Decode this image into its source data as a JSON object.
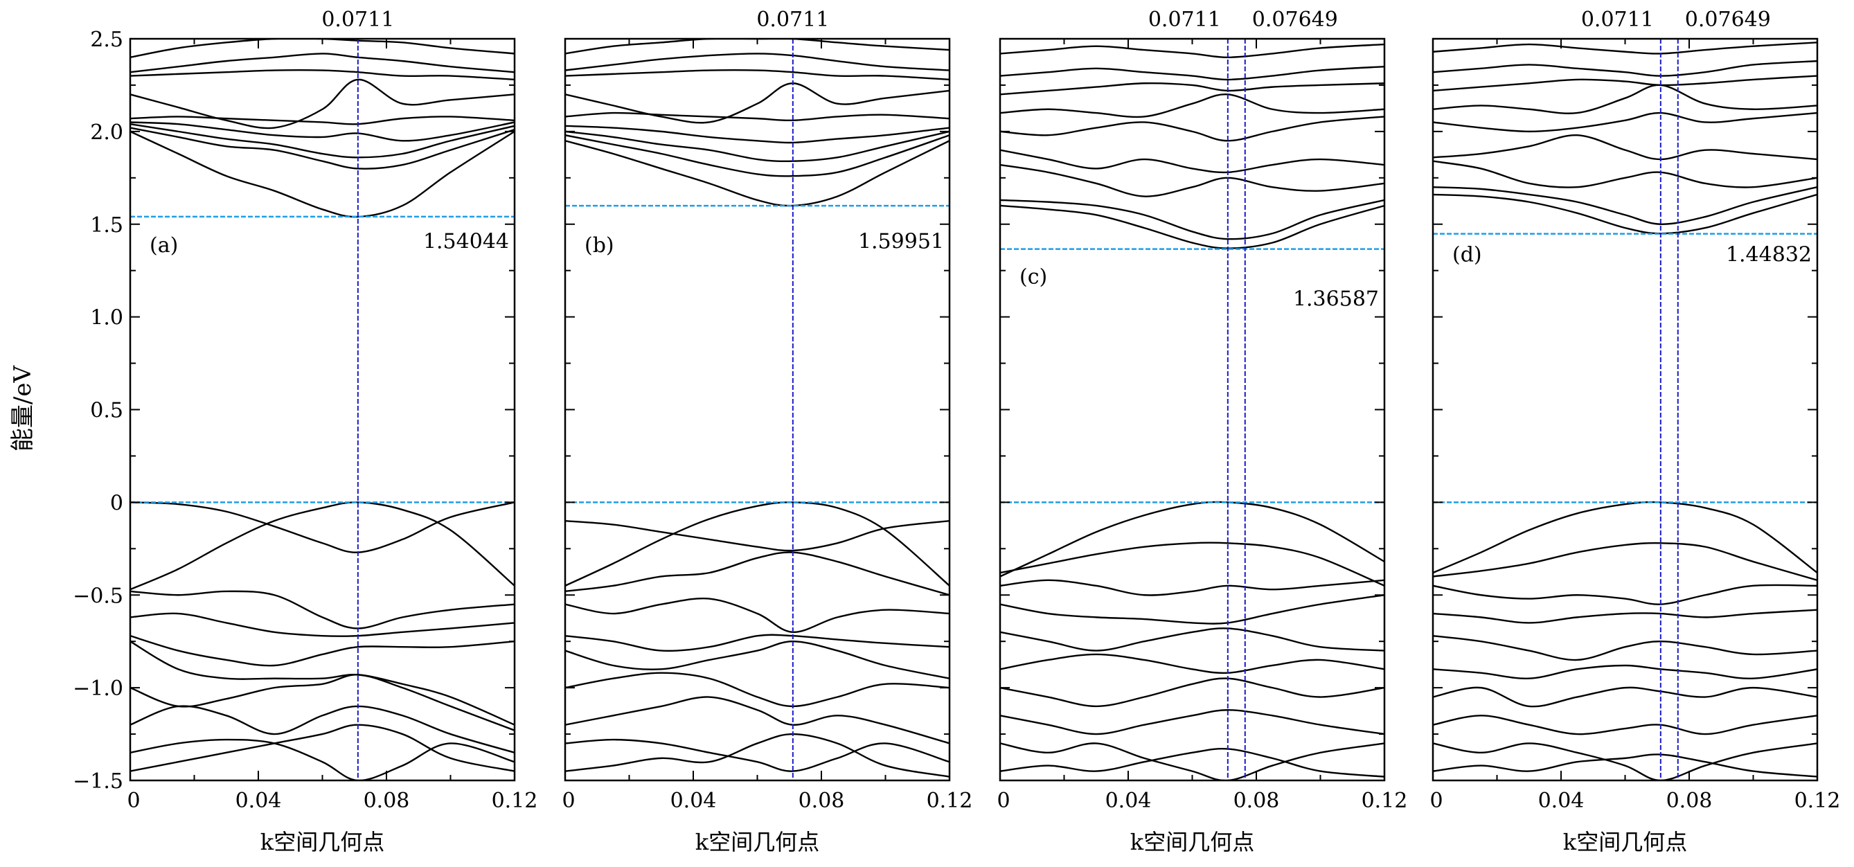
{
  "figure": {
    "ylabel": "能量/eV",
    "xlabel": "k空间几何点",
    "colors": {
      "bands": "#000000",
      "fermi_and_cbm_lines": "#1e9ee6",
      "k_markers": "#1a1acc"
    }
  },
  "chart_data": [
    {
      "type": "line",
      "panel_label": "(a)",
      "xlabel": "k空间几何点",
      "ylabel": "能量/eV",
      "xlim": [
        0,
        0.12
      ],
      "ylim": [
        -1.5,
        2.5
      ],
      "xticks": [
        "0",
        "0.04",
        "0.08",
        "0.12"
      ],
      "yticks": [
        "−1.5",
        "−1.0",
        "−0.5",
        "0",
        "0.5",
        "1.0",
        "1.5",
        "2.0",
        "2.5"
      ],
      "k_markers": [
        0.0711
      ],
      "k_marker_labels": [
        "0.0711"
      ],
      "cbm": 1.54044,
      "cbm_label": "1.54044",
      "vbm": 0,
      "k": [
        0,
        0.015,
        0.03,
        0.045,
        0.06,
        0.0711,
        0.085,
        0.1,
        0.12
      ],
      "bands": [
        [
          2.0,
          1.88,
          1.76,
          1.68,
          1.58,
          1.54,
          1.6,
          1.78,
          2.0
        ],
        [
          2.02,
          1.97,
          1.92,
          1.9,
          1.84,
          1.8,
          1.82,
          1.9,
          2.01
        ],
        [
          2.04,
          2.0,
          1.96,
          1.93,
          1.88,
          1.86,
          1.88,
          1.95,
          2.03
        ],
        [
          2.05,
          2.04,
          2.01,
          1.98,
          1.97,
          1.99,
          1.95,
          1.98,
          2.05
        ],
        [
          2.07,
          2.08,
          2.07,
          2.06,
          2.05,
          2.04,
          2.07,
          2.08,
          2.06
        ],
        [
          2.2,
          2.13,
          2.06,
          2.02,
          2.12,
          2.28,
          2.15,
          2.17,
          2.2
        ],
        [
          2.3,
          2.31,
          2.32,
          2.33,
          2.33,
          2.32,
          2.3,
          2.3,
          2.28
        ],
        [
          2.32,
          2.35,
          2.38,
          2.4,
          2.42,
          2.4,
          2.38,
          2.35,
          2.32
        ],
        [
          2.4,
          2.45,
          2.48,
          2.5,
          2.5,
          2.49,
          2.48,
          2.45,
          2.42
        ],
        [
          0.0,
          -0.01,
          -0.05,
          -0.13,
          -0.22,
          -0.27,
          -0.2,
          -0.08,
          0.0
        ],
        [
          -0.47,
          -0.36,
          -0.22,
          -0.1,
          -0.03,
          0.0,
          -0.04,
          -0.15,
          -0.45
        ],
        [
          -0.48,
          -0.5,
          -0.48,
          -0.5,
          -0.62,
          -0.68,
          -0.62,
          -0.58,
          -0.55
        ],
        [
          -0.62,
          -0.6,
          -0.65,
          -0.7,
          -0.72,
          -0.72,
          -0.7,
          -0.68,
          -0.65
        ],
        [
          -0.72,
          -0.8,
          -0.85,
          -0.88,
          -0.82,
          -0.78,
          -0.78,
          -0.78,
          -0.75
        ],
        [
          -0.75,
          -0.9,
          -0.95,
          -0.95,
          -0.95,
          -0.93,
          -0.98,
          -1.05,
          -1.2
        ],
        [
          -1.0,
          -1.1,
          -1.06,
          -1.0,
          -0.98,
          -0.93,
          -1.0,
          -1.1,
          -1.23
        ],
        [
          -1.2,
          -1.1,
          -1.15,
          -1.25,
          -1.15,
          -1.1,
          -1.15,
          -1.25,
          -1.35
        ],
        [
          -1.35,
          -1.3,
          -1.28,
          -1.3,
          -1.4,
          -1.5,
          -1.42,
          -1.3,
          -1.4
        ],
        [
          -1.45,
          -1.4,
          -1.35,
          -1.3,
          -1.25,
          -1.2,
          -1.25,
          -1.38,
          -1.45
        ]
      ]
    },
    {
      "type": "line",
      "panel_label": "(b)",
      "xlabel": "k空间几何点",
      "xlim": [
        0,
        0.12
      ],
      "ylim": [
        -1.5,
        2.5
      ],
      "xticks": [
        "0",
        "0.04",
        "0.08",
        "0.12"
      ],
      "k_markers": [
        0.0711
      ],
      "k_marker_labels": [
        "0.0711"
      ],
      "cbm": 1.59951,
      "cbm_label": "1.59951",
      "vbm": 0,
      "k": [
        0,
        0.015,
        0.03,
        0.045,
        0.06,
        0.0711,
        0.085,
        0.1,
        0.12
      ],
      "bands": [
        [
          1.95,
          1.88,
          1.8,
          1.72,
          1.63,
          1.6,
          1.65,
          1.78,
          1.95
        ],
        [
          1.98,
          1.93,
          1.88,
          1.82,
          1.77,
          1.76,
          1.78,
          1.86,
          1.98
        ],
        [
          2.0,
          1.97,
          1.93,
          1.9,
          1.85,
          1.84,
          1.86,
          1.92,
          2.0
        ],
        [
          2.03,
          2.02,
          2.0,
          1.97,
          1.95,
          1.94,
          1.96,
          1.98,
          2.02
        ],
        [
          2.08,
          2.1,
          2.09,
          2.08,
          2.07,
          2.06,
          2.08,
          2.09,
          2.07
        ],
        [
          2.2,
          2.14,
          2.08,
          2.05,
          2.15,
          2.26,
          2.15,
          2.18,
          2.22
        ],
        [
          2.3,
          2.31,
          2.32,
          2.33,
          2.33,
          2.32,
          2.3,
          2.3,
          2.28
        ],
        [
          2.33,
          2.36,
          2.39,
          2.41,
          2.42,
          2.41,
          2.38,
          2.35,
          2.33
        ],
        [
          2.42,
          2.46,
          2.48,
          2.5,
          2.5,
          2.5,
          2.48,
          2.46,
          2.44
        ],
        [
          -0.45,
          -0.33,
          -0.2,
          -0.09,
          -0.02,
          0.0,
          -0.03,
          -0.15,
          -0.45
        ],
        [
          -0.1,
          -0.12,
          -0.16,
          -0.2,
          -0.24,
          -0.26,
          -0.22,
          -0.14,
          -0.1
        ],
        [
          -0.48,
          -0.45,
          -0.4,
          -0.38,
          -0.3,
          -0.27,
          -0.32,
          -0.4,
          -0.5
        ],
        [
          -0.55,
          -0.6,
          -0.55,
          -0.52,
          -0.6,
          -0.7,
          -0.62,
          -0.58,
          -0.6
        ],
        [
          -0.72,
          -0.75,
          -0.8,
          -0.78,
          -0.72,
          -0.72,
          -0.74,
          -0.76,
          -0.78
        ],
        [
          -0.8,
          -0.88,
          -0.9,
          -0.85,
          -0.8,
          -0.75,
          -0.8,
          -0.88,
          -0.95
        ],
        [
          -1.0,
          -0.95,
          -0.92,
          -0.95,
          -1.05,
          -1.1,
          -1.05,
          -0.98,
          -1.0
        ],
        [
          -1.2,
          -1.15,
          -1.1,
          -1.05,
          -1.12,
          -1.2,
          -1.15,
          -1.2,
          -1.3
        ],
        [
          -1.3,
          -1.28,
          -1.3,
          -1.35,
          -1.4,
          -1.45,
          -1.38,
          -1.3,
          -1.4
        ],
        [
          -1.45,
          -1.42,
          -1.38,
          -1.4,
          -1.3,
          -1.25,
          -1.3,
          -1.42,
          -1.48
        ]
      ]
    },
    {
      "type": "line",
      "panel_label": "(c)",
      "xlabel": "k空间几何点",
      "xlim": [
        0,
        0.12
      ],
      "ylim": [
        -1.5,
        2.5
      ],
      "xticks": [
        "0",
        "0.04",
        "0.08",
        "0.12"
      ],
      "k_markers": [
        0.0711,
        0.07649
      ],
      "k_marker_labels": [
        "0.0711",
        "0.07649"
      ],
      "cbm": 1.36587,
      "cbm_label": "1.36587",
      "vbm": 0,
      "k": [
        0,
        0.015,
        0.03,
        0.045,
        0.06,
        0.0711,
        0.085,
        0.1,
        0.12
      ],
      "bands": [
        [
          1.6,
          1.58,
          1.55,
          1.48,
          1.4,
          1.37,
          1.4,
          1.5,
          1.6
        ],
        [
          1.63,
          1.62,
          1.6,
          1.55,
          1.46,
          1.42,
          1.45,
          1.55,
          1.63
        ],
        [
          1.82,
          1.78,
          1.72,
          1.65,
          1.7,
          1.75,
          1.7,
          1.68,
          1.72
        ],
        [
          1.9,
          1.85,
          1.8,
          1.85,
          1.8,
          1.78,
          1.82,
          1.85,
          1.82
        ],
        [
          2.0,
          1.98,
          2.02,
          2.05,
          2.0,
          1.95,
          2.0,
          2.05,
          2.08
        ],
        [
          2.1,
          2.12,
          2.1,
          2.08,
          2.15,
          2.2,
          2.12,
          2.1,
          2.12
        ],
        [
          2.2,
          2.22,
          2.24,
          2.26,
          2.25,
          2.22,
          2.24,
          2.25,
          2.26
        ],
        [
          2.3,
          2.32,
          2.34,
          2.32,
          2.3,
          2.28,
          2.3,
          2.33,
          2.35
        ],
        [
          2.42,
          2.44,
          2.46,
          2.44,
          2.42,
          2.4,
          2.42,
          2.45,
          2.47
        ],
        [
          -0.4,
          -0.28,
          -0.16,
          -0.07,
          -0.01,
          0.0,
          -0.03,
          -0.12,
          -0.32
        ],
        [
          -0.38,
          -0.33,
          -0.28,
          -0.24,
          -0.22,
          -0.22,
          -0.24,
          -0.3,
          -0.45
        ],
        [
          -0.45,
          -0.42,
          -0.45,
          -0.5,
          -0.48,
          -0.45,
          -0.47,
          -0.45,
          -0.42
        ],
        [
          -0.55,
          -0.6,
          -0.62,
          -0.63,
          -0.65,
          -0.65,
          -0.6,
          -0.55,
          -0.5
        ],
        [
          -0.7,
          -0.75,
          -0.8,
          -0.75,
          -0.7,
          -0.68,
          -0.72,
          -0.78,
          -0.8
        ],
        [
          -0.9,
          -0.85,
          -0.82,
          -0.85,
          -0.9,
          -0.92,
          -0.88,
          -0.85,
          -0.9
        ],
        [
          -1.0,
          -1.05,
          -1.1,
          -1.05,
          -0.98,
          -0.95,
          -1.0,
          -1.05,
          -1.0
        ],
        [
          -1.15,
          -1.2,
          -1.25,
          -1.2,
          -1.15,
          -1.12,
          -1.15,
          -1.2,
          -1.25
        ],
        [
          -1.3,
          -1.35,
          -1.3,
          -1.38,
          -1.45,
          -1.5,
          -1.42,
          -1.35,
          -1.3
        ],
        [
          -1.45,
          -1.42,
          -1.45,
          -1.4,
          -1.35,
          -1.33,
          -1.38,
          -1.45,
          -1.48
        ]
      ]
    },
    {
      "type": "line",
      "panel_label": "(d)",
      "xlabel": "k空间几何点",
      "xlim": [
        0,
        0.12
      ],
      "ylim": [
        -1.5,
        2.5
      ],
      "xticks": [
        "0",
        "0.04",
        "0.08",
        "0.12"
      ],
      "k_markers": [
        0.0711,
        0.07649
      ],
      "k_marker_labels": [
        "0.0711",
        "0.07649"
      ],
      "cbm": 1.44832,
      "cbm_label": "1.44832",
      "vbm": 0,
      "k": [
        0,
        0.015,
        0.03,
        0.045,
        0.06,
        0.0711,
        0.085,
        0.1,
        0.12
      ],
      "bands": [
        [
          1.66,
          1.65,
          1.62,
          1.56,
          1.48,
          1.45,
          1.48,
          1.56,
          1.66
        ],
        [
          1.7,
          1.69,
          1.66,
          1.62,
          1.55,
          1.5,
          1.54,
          1.62,
          1.7
        ],
        [
          1.84,
          1.8,
          1.72,
          1.7,
          1.75,
          1.78,
          1.72,
          1.7,
          1.75
        ],
        [
          1.86,
          1.88,
          1.92,
          1.98,
          1.9,
          1.85,
          1.9,
          1.88,
          1.85
        ],
        [
          2.05,
          2.02,
          2.0,
          2.02,
          2.06,
          2.1,
          2.05,
          2.07,
          2.1
        ],
        [
          2.12,
          2.14,
          2.12,
          2.1,
          2.18,
          2.25,
          2.15,
          2.12,
          2.14
        ],
        [
          2.22,
          2.24,
          2.26,
          2.28,
          2.27,
          2.25,
          2.26,
          2.28,
          2.3
        ],
        [
          2.32,
          2.34,
          2.36,
          2.34,
          2.32,
          2.3,
          2.32,
          2.36,
          2.38
        ],
        [
          2.43,
          2.45,
          2.47,
          2.45,
          2.43,
          2.42,
          2.44,
          2.46,
          2.48
        ],
        [
          -0.38,
          -0.27,
          -0.15,
          -0.06,
          -0.01,
          0.0,
          -0.03,
          -0.12,
          -0.38
        ],
        [
          -0.4,
          -0.37,
          -0.33,
          -0.27,
          -0.23,
          -0.22,
          -0.24,
          -0.32,
          -0.42
        ],
        [
          -0.45,
          -0.5,
          -0.52,
          -0.5,
          -0.52,
          -0.55,
          -0.5,
          -0.45,
          -0.45
        ],
        [
          -0.6,
          -0.62,
          -0.65,
          -0.62,
          -0.6,
          -0.6,
          -0.62,
          -0.6,
          -0.58
        ],
        [
          -0.72,
          -0.75,
          -0.8,
          -0.85,
          -0.78,
          -0.75,
          -0.78,
          -0.82,
          -0.8
        ],
        [
          -0.9,
          -0.92,
          -0.95,
          -0.9,
          -0.88,
          -0.9,
          -0.92,
          -0.95,
          -0.9
        ],
        [
          -1.05,
          -1.0,
          -1.1,
          -1.05,
          -1.0,
          -1.02,
          -1.05,
          -1.0,
          -1.05
        ],
        [
          -1.2,
          -1.15,
          -1.2,
          -1.25,
          -1.22,
          -1.2,
          -1.25,
          -1.2,
          -1.15
        ],
        [
          -1.3,
          -1.35,
          -1.3,
          -1.35,
          -1.42,
          -1.5,
          -1.42,
          -1.35,
          -1.3
        ],
        [
          -1.45,
          -1.42,
          -1.45,
          -1.4,
          -1.38,
          -1.36,
          -1.4,
          -1.45,
          -1.48
        ]
      ]
    }
  ]
}
